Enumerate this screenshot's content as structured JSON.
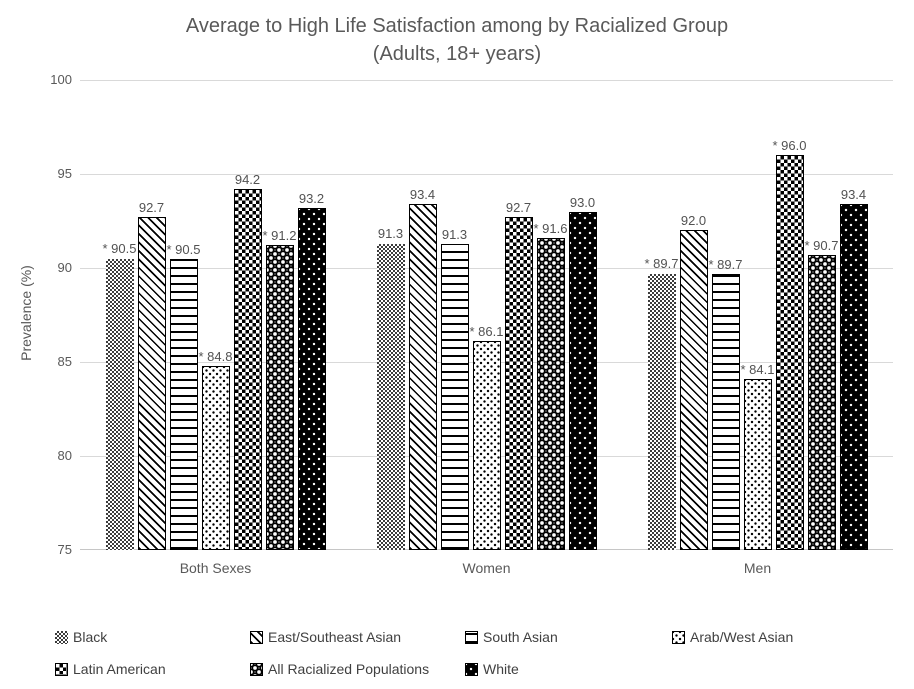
{
  "chart_data": {
    "type": "bar",
    "title": "Average to High Life Satisfaction among by Racialized Group",
    "subtitle": "(Adults, 18+ years)",
    "ylabel": "Prevalence (%)",
    "ylim": [
      75,
      100
    ],
    "yticks": [
      100,
      95,
      90,
      85,
      80,
      75
    ],
    "grid": "horizontal",
    "legend_position": "bottom",
    "categories": [
      "Both Sexes",
      "Women",
      "Men"
    ],
    "series": [
      {
        "name": "Black",
        "pattern": "gray-small-checker",
        "values": [
          90.5,
          91.3,
          89.7
        ],
        "labels": [
          "* 90.5",
          "91.3",
          "* 89.7"
        ]
      },
      {
        "name": "East/Southeast Asian",
        "pattern": "diagonal-stripes",
        "values": [
          92.7,
          93.4,
          92.0
        ],
        "labels": [
          "92.7",
          "93.4",
          "92.0"
        ]
      },
      {
        "name": "South Asian",
        "pattern": "horizontal-stripes",
        "values": [
          90.5,
          91.3,
          89.7
        ],
        "labels": [
          "* 90.5",
          "91.3",
          "* 89.7"
        ]
      },
      {
        "name": "Arab/West Asian",
        "pattern": "sparse-dots",
        "values": [
          84.8,
          86.1,
          84.1
        ],
        "labels": [
          "* 84.8",
          "* 86.1",
          "* 84.1"
        ]
      },
      {
        "name": "Latin American",
        "pattern": "small-checkerboard",
        "values": [
          94.2,
          92.7,
          96.0
        ],
        "labels": [
          "94.2",
          "92.7",
          "* 96.0"
        ]
      },
      {
        "name": "All Racialized Populations",
        "pattern": "circles",
        "values": [
          91.2,
          91.6,
          90.7
        ],
        "labels": [
          "* 91.2",
          "* 91.6",
          "* 90.7"
        ]
      },
      {
        "name": "White",
        "pattern": "black-with-white-dots",
        "values": [
          93.2,
          93.0,
          93.4
        ],
        "labels": [
          "93.2",
          "93.0",
          "93.4"
        ]
      }
    ],
    "colors": {
      "text": "#595959",
      "gridline": "#d9d9d9",
      "axis_line": "#c6c6c6",
      "data_label_text": "#525252",
      "legend_text": "#404040",
      "background": "#ffffff"
    }
  }
}
